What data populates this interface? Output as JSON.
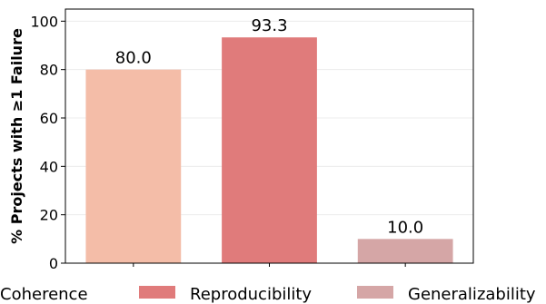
{
  "chart_data": {
    "type": "bar",
    "categories": [
      "Coherence",
      "Reproducibility",
      "Generalizability"
    ],
    "values": [
      80.0,
      93.3,
      10.0
    ],
    "value_labels": [
      "80.0",
      "93.3",
      "10.0"
    ],
    "colors": [
      "#f4bda8",
      "#e07b7b",
      "#d5a6a6"
    ],
    "title": "",
    "xlabel": "",
    "ylabel": "% Projects with ≥1 Failure",
    "ylim": [
      0,
      105
    ],
    "yticks": [
      0,
      20,
      40,
      60,
      80,
      100
    ],
    "grid": true,
    "legend": {
      "position": "bottom",
      "entries": [
        "Coherence",
        "Reproducibility",
        "Generalizability"
      ]
    }
  }
}
